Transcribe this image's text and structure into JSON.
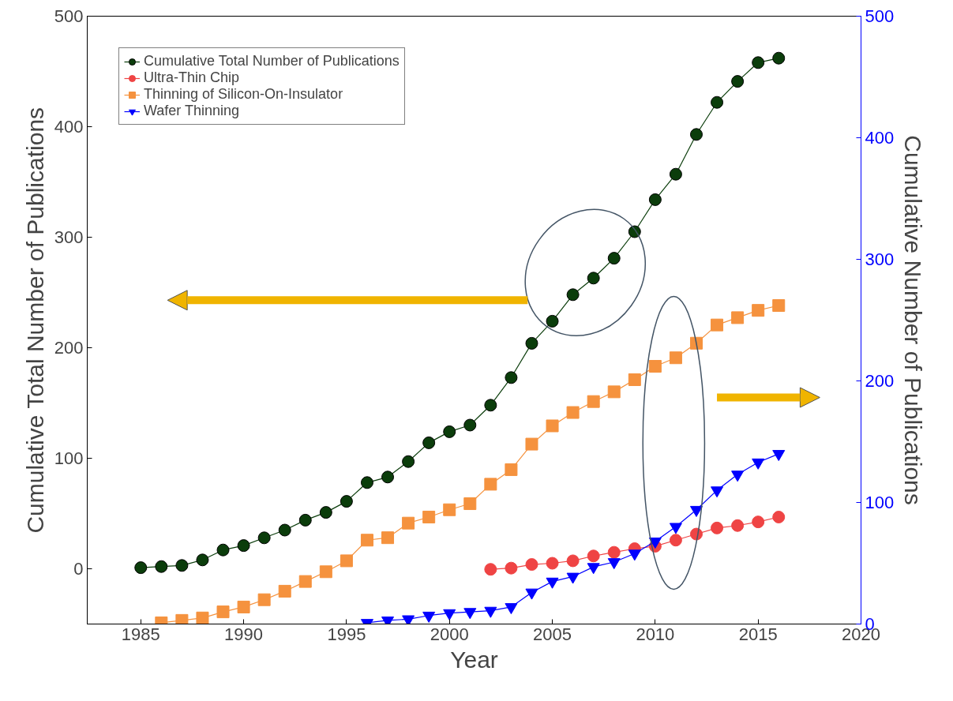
{
  "chart_data": {
    "type": "line",
    "xlabel": "Year",
    "ylabel": "Cumulative Total Number of Publications",
    "y2label": "Cumulative Number of Publications",
    "xlim": [
      1982.4,
      2020
    ],
    "xticks": [
      1985,
      1990,
      1995,
      2000,
      2005,
      2010,
      2015,
      2020
    ],
    "ylim": [
      -50,
      500
    ],
    "yticks": [
      0,
      100,
      200,
      300,
      400,
      500
    ],
    "y2lim": [
      0,
      500
    ],
    "y2ticks": [
      0,
      100,
      200,
      300,
      400,
      500
    ],
    "grid": false,
    "legend": "top left",
    "line_style": "solid",
    "series": [
      {
        "name": "Cumulative Total Number of Publications",
        "color": "#0b3d0b",
        "marker": "circle",
        "x": [
          1985,
          1986,
          1987,
          1988,
          1989,
          1990,
          1991,
          1992,
          1993,
          1994,
          1995,
          1996,
          1997,
          1998,
          1999,
          2000,
          2001,
          2002,
          2003,
          2004,
          2005,
          2006,
          2007,
          2008,
          2009,
          2010,
          2011,
          2012,
          2013,
          2014,
          2015,
          2016
        ],
        "values": [
          1,
          2,
          3,
          8,
          17,
          21,
          28,
          35,
          44,
          51,
          61,
          78,
          83,
          97,
          114,
          124,
          130,
          148,
          173,
          204,
          224,
          248,
          263,
          281,
          305,
          334,
          357,
          393,
          422,
          441,
          458,
          462
        ]
      },
      {
        "name": "Ultra-Thin Chip",
        "color": "#ef4444",
        "marker": "circle",
        "axis": "y2",
        "x": [
          2002,
          2003,
          2004,
          2005,
          2006,
          2007,
          2008,
          2009,
          2010,
          2011,
          2012,
          2013,
          2014,
          2015,
          2016
        ],
        "values": [
          45,
          46,
          49,
          50,
          52,
          56,
          59,
          62,
          64,
          69,
          74,
          79,
          81,
          84,
          88
        ]
      },
      {
        "name": "Thinning of Silicon-On-Insulator",
        "color": "#f5923e",
        "marker": "square",
        "axis": "y2",
        "x": [
          1986,
          1987,
          1988,
          1989,
          1990,
          1991,
          1992,
          1993,
          1994,
          1995,
          1996,
          1997,
          1998,
          1999,
          2000,
          2001,
          2002,
          2003,
          2004,
          2005,
          2006,
          2007,
          2008,
          2009,
          2010,
          2011,
          2012,
          2013,
          2014,
          2015,
          2016
        ],
        "values": [
          1,
          3,
          5,
          10,
          14,
          20,
          27,
          35,
          43,
          52,
          69,
          71,
          83,
          88,
          94,
          99,
          115,
          127,
          148,
          163,
          174,
          183,
          191,
          201,
          212,
          219,
          231,
          246,
          252,
          258,
          262
        ]
      },
      {
        "name": "Wafer Thinning",
        "color": "#0000ff",
        "marker": "triangle",
        "axis": "y2",
        "x": [
          1996,
          1997,
          1998,
          1999,
          2000,
          2001,
          2002,
          2003,
          2004,
          2005,
          2006,
          2007,
          2008,
          2009,
          2010,
          2011,
          2012,
          2013,
          2014,
          2015,
          2016
        ],
        "values": [
          1,
          3,
          4,
          7,
          9,
          10,
          11,
          14,
          26,
          35,
          39,
          47,
          51,
          58,
          68,
          80,
          94,
          110,
          123,
          133,
          140
        ]
      }
    ]
  }
}
